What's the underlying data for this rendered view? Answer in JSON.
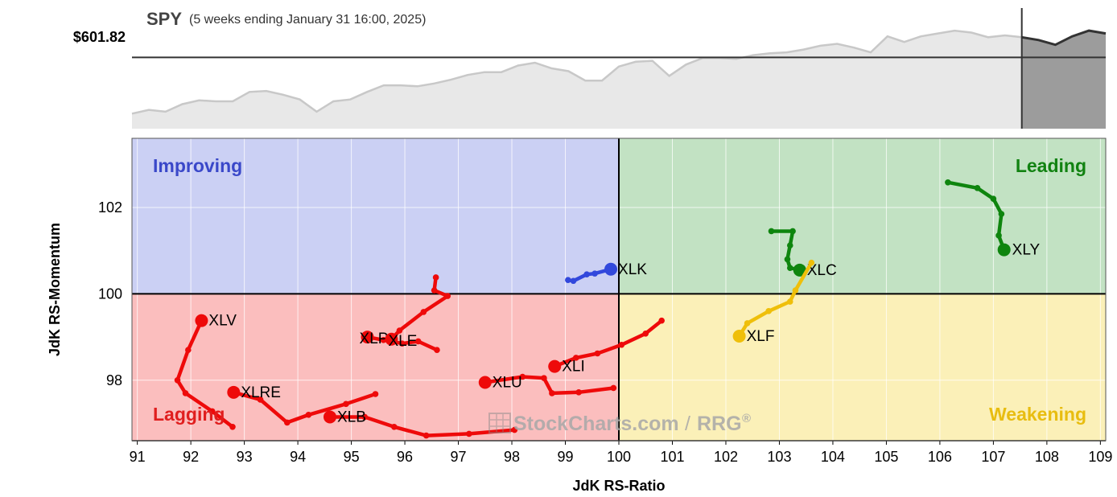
{
  "header": {
    "symbol": "SPY",
    "period": "(5 weeks ending January 31 16:00, 2025)",
    "price": "$601.82"
  },
  "colors": {
    "improving": "#cbd0f4",
    "leading": "#c2e2c3",
    "lagging": "#fbbebe",
    "weakening": "#fbf0b8",
    "improving_text": "#3a48c9",
    "leading_text": "#118211",
    "lagging_text": "#e01e1e",
    "weakening_text": "#e8bd10",
    "red": "#ee0a0a",
    "green": "#0e850e",
    "blue": "#3248dc",
    "yellow": "#efbf0a",
    "spy_fill": "#e8e8e8",
    "spy_line": "#c8c8c8",
    "spy_recent_fill": "#9c9c9c",
    "spy_recent_line": "#333333"
  },
  "quadrants": {
    "improving": "Improving",
    "leading": "Leading",
    "lagging": "Lagging",
    "weakening": "Weakening"
  },
  "watermark": {
    "brand": "StockCharts.com",
    "separator": "/",
    "product": "RRG",
    "mark": "®"
  },
  "chart_data": [
    {
      "type": "area",
      "x_label": "",
      "y_label": "",
      "price_label": "$601.82",
      "price_level": 601.82,
      "values": [
        572,
        574,
        573,
        577,
        579,
        578.5,
        578.5,
        583.5,
        584,
        582,
        579.5,
        573,
        578.5,
        579.5,
        583.5,
        587,
        587,
        586.5,
        588,
        590,
        592.5,
        594,
        594,
        597.5,
        599,
        596,
        594.5,
        589.5,
        589.5,
        597,
        599.5,
        600,
        592,
        598,
        601.5,
        601.5,
        601,
        603,
        604,
        604.5,
        606,
        608,
        609,
        607,
        604.5,
        613,
        610,
        613,
        614.5,
        616,
        615,
        612.5,
        613.5,
        612.5,
        611,
        608.5,
        613,
        616,
        614.5
      ],
      "recent_start_index": 53
    },
    {
      "type": "scatter",
      "xlabel": "JdK RS-Ratio",
      "ylabel": "JdK RS-Momentum",
      "xlim": [
        90.9,
        109.1
      ],
      "ylim": [
        96.6,
        103.6
      ],
      "x_ticks": [
        "91",
        "92",
        "93",
        "94",
        "95",
        "96",
        "97",
        "98",
        "99",
        "100",
        "101",
        "102",
        "103",
        "104",
        "105",
        "106",
        "107",
        "108",
        "109"
      ],
      "y_ticks": [
        "98",
        "100",
        "102"
      ],
      "center": [
        100,
        100
      ],
      "series": [
        {
          "name": "XLY",
          "color": "green",
          "points": [
            [
              106.15,
              102.58
            ],
            [
              106.7,
              102.45
            ],
            [
              107.0,
              102.2
            ],
            [
              107.15,
              101.85
            ],
            [
              107.1,
              101.35
            ],
            [
              107.2,
              101.02
            ]
          ]
        },
        {
          "name": "XLC",
          "color": "green",
          "points": [
            [
              102.85,
              101.45
            ],
            [
              103.25,
              101.45
            ],
            [
              103.2,
              101.12
            ],
            [
              103.15,
              100.8
            ],
            [
              103.2,
              100.6
            ],
            [
              103.38,
              100.55
            ]
          ]
        },
        {
          "name": "XLK",
          "color": "blue",
          "points": [
            [
              99.05,
              100.32
            ],
            [
              99.15,
              100.3
            ],
            [
              99.4,
              100.45
            ],
            [
              99.55,
              100.47
            ],
            [
              99.85,
              100.57
            ]
          ]
        },
        {
          "name": "XLF",
          "color": "yellow",
          "points": [
            [
              103.6,
              100.72
            ],
            [
              103.3,
              100.08
            ],
            [
              103.2,
              99.82
            ],
            [
              102.8,
              99.6
            ],
            [
              102.4,
              99.32
            ],
            [
              102.25,
              99.02
            ]
          ]
        },
        {
          "name": "XLI",
          "color": "red",
          "points": [
            [
              100.8,
              99.38
            ],
            [
              100.5,
              99.08
            ],
            [
              100.05,
              98.82
            ],
            [
              99.6,
              98.62
            ],
            [
              99.2,
              98.52
            ],
            [
              98.8,
              98.32
            ]
          ]
        },
        {
          "name": "XLU",
          "color": "red",
          "points": [
            [
              99.9,
              97.82
            ],
            [
              99.25,
              97.72
            ],
            [
              98.75,
              97.7
            ],
            [
              98.6,
              98.05
            ],
            [
              98.2,
              98.08
            ],
            [
              97.5,
              97.95
            ]
          ]
        },
        {
          "name": "XLRE",
          "color": "red",
          "points": [
            [
              95.45,
              97.68
            ],
            [
              94.9,
              97.45
            ],
            [
              94.2,
              97.2
            ],
            [
              93.8,
              97.02
            ],
            [
              93.3,
              97.55
            ],
            [
              92.8,
              97.72
            ]
          ]
        },
        {
          "name": "XLV",
          "color": "red",
          "points": [
            [
              92.78,
              96.92
            ],
            [
              92.4,
              97.28
            ],
            [
              91.9,
              97.7
            ],
            [
              91.75,
              98.0
            ],
            [
              91.95,
              98.7
            ],
            [
              92.2,
              99.38
            ]
          ]
        },
        {
          "name": "XLB",
          "color": "red",
          "points": [
            [
              98.05,
              96.85
            ],
            [
              97.2,
              96.76
            ],
            [
              96.4,
              96.72
            ],
            [
              95.8,
              96.92
            ],
            [
              95.25,
              97.15
            ],
            [
              94.6,
              97.15
            ]
          ]
        },
        {
          "name": "XLP",
          "color": "red",
          "points": [
            [
              96.6,
              98.7
            ],
            [
              96.25,
              98.9
            ],
            [
              95.95,
              98.85
            ],
            [
              95.6,
              98.93
            ],
            [
              95.3,
              99.0
            ]
          ]
        },
        {
          "name": "XLE",
          "color": "red",
          "points": [
            [
              96.58,
              100.38
            ],
            [
              96.55,
              100.08
            ],
            [
              96.8,
              99.95
            ],
            [
              96.35,
              99.58
            ],
            [
              95.9,
              99.15
            ],
            [
              95.75,
              98.95
            ]
          ]
        }
      ]
    }
  ]
}
